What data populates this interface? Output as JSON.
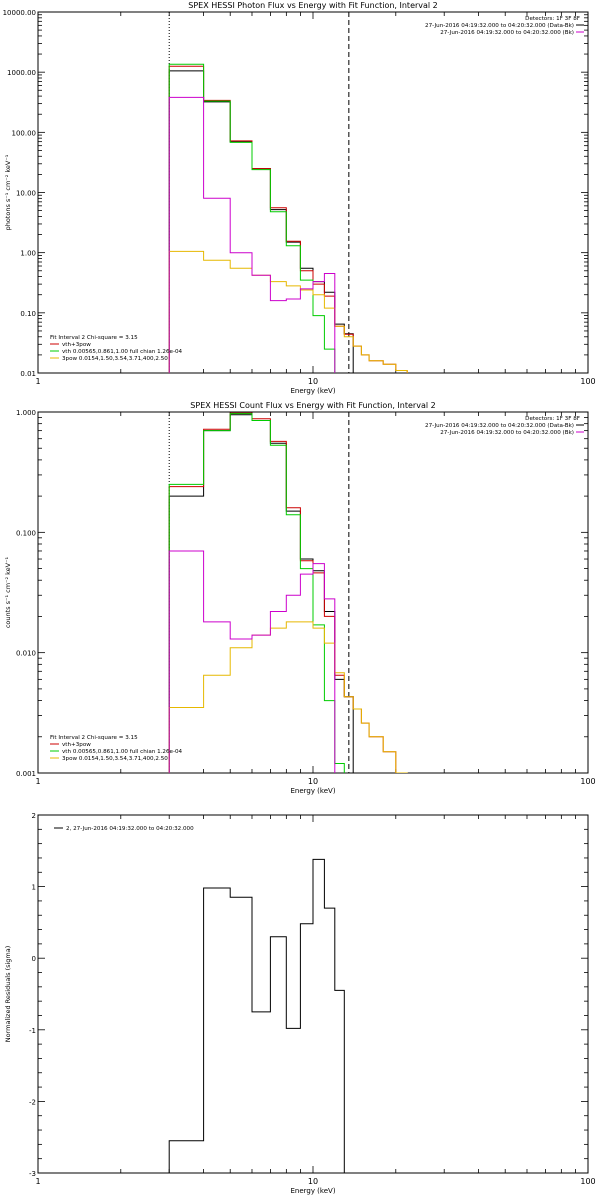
{
  "chart_data": [
    {
      "type": "line",
      "title": "SPEX HESSI Photon Flux vs Energy with Fit Function, Interval 2",
      "xlabel": "Energy (keV)",
      "ylabel": "photons s⁻¹ cm⁻² keV⁻¹",
      "x_scale": "log",
      "y_scale": "log",
      "xlim": [
        1,
        100
      ],
      "ylim": [
        0.01,
        10000
      ],
      "x_ticks": [
        "1",
        "10",
        "100"
      ],
      "y_ticks": [
        "0.01",
        "0.10",
        "1.00",
        "10.00",
        "100.00",
        "1000.00",
        "10000.00"
      ],
      "detectors": "Detectors: 1F 3F 8F",
      "legend_top": [
        {
          "text": "27-Jun-2016 04:19:32.000 to 04:20:32.000 (Data-Bk)",
          "color": "#000000"
        },
        {
          "text": "27-Jun-2016 04:19:32.000 to 04:20:32.000 (Bk)",
          "color": "#cc00cc"
        }
      ],
      "legend_bottom": [
        {
          "text": "Fit Interval 2   Chi-square = 3.15",
          "color": "#000000"
        },
        {
          "text": "vth+3pow",
          "color": "#cc0000"
        },
        {
          "text": "vth 0.00565,0.861,1.00  full chian 1.26e-04",
          "color": "#00cc00"
        },
        {
          "text": "3pow 0.0154,1.50,3.54,3.71,400,2.50",
          "color": "#e6b800"
        }
      ],
      "vlines": [
        {
          "x": 3.0,
          "style": "dotted",
          "color": "#000000"
        },
        {
          "x": 13.5,
          "style": "dashed",
          "color": "#000000"
        }
      ],
      "bin_edges": [
        3,
        4,
        5,
        6,
        7,
        8,
        9,
        10,
        11,
        12,
        13,
        14,
        15,
        16,
        18,
        20,
        22,
        25
      ],
      "series": [
        {
          "name": "Data-Bk",
          "color": "#000000",
          "values": [
            1050,
            320,
            70,
            25,
            5.2,
            1.5,
            0.55,
            0.33,
            0.22,
            0.065,
            0.045,
            null,
            null,
            null,
            null,
            null,
            null
          ]
        },
        {
          "name": "vth+3pow",
          "color": "#cc0000",
          "values": [
            1250,
            340,
            72,
            25,
            5.6,
            1.55,
            0.5,
            0.3,
            0.19,
            0.06,
            0.044,
            0.028,
            0.02,
            0.016,
            0.014,
            0.011,
            null
          ]
        },
        {
          "name": "vth",
          "color": "#00cc00",
          "values": [
            1350,
            330,
            68,
            24,
            4.8,
            1.3,
            0.35,
            0.09,
            0.025,
            null,
            null,
            null,
            null,
            null,
            null,
            null,
            null
          ]
        },
        {
          "name": "3pow",
          "color": "#e6b800",
          "values": [
            1.05,
            0.75,
            0.55,
            0.42,
            0.33,
            0.28,
            0.24,
            0.2,
            0.12,
            0.06,
            0.04,
            0.028,
            0.02,
            0.016,
            0.014,
            0.011,
            null
          ]
        },
        {
          "name": "Bk",
          "color": "#cc00cc",
          "values": [
            380,
            8,
            1.0,
            0.42,
            0.16,
            0.17,
            0.25,
            0.33,
            0.45,
            null,
            null,
            null,
            null,
            null,
            null,
            null,
            null
          ]
        }
      ]
    },
    {
      "type": "line",
      "title": "SPEX HESSI Count Flux vs Energy with Fit Function, Interval 2",
      "xlabel": "Energy (keV)",
      "ylabel": "counts s⁻¹ cm⁻² keV⁻¹",
      "x_scale": "log",
      "y_scale": "log",
      "xlim": [
        1,
        100
      ],
      "ylim": [
        0.001,
        1
      ],
      "x_ticks": [
        "1",
        "10",
        "100"
      ],
      "y_ticks": [
        "0.001",
        "0.010",
        "0.100",
        "1.000"
      ],
      "detectors": "Detectors: 1F 3F 8F",
      "legend_top": [
        {
          "text": "27-Jun-2016 04:19:32.000 to 04:20:32.000 (Data-Bk)",
          "color": "#000000"
        },
        {
          "text": "27-Jun-2016 04:19:32.000 to 04:20:32.000 (Bk)",
          "color": "#cc00cc"
        }
      ],
      "legend_bottom": [
        {
          "text": "Fit Interval 2   Chi-square = 3.15",
          "color": "#000000"
        },
        {
          "text": "vth+3pow",
          "color": "#cc0000"
        },
        {
          "text": "vth 0.00565,0.861,1.00  full chian 1.26e-04",
          "color": "#00cc00"
        },
        {
          "text": "3pow 0.0154,1.50,3.54,3.71,400,2.50",
          "color": "#e6b800"
        }
      ],
      "vlines": [
        {
          "x": 3.0,
          "style": "dotted",
          "color": "#000000"
        },
        {
          "x": 13.5,
          "style": "dashed",
          "color": "#000000"
        }
      ],
      "bin_edges": [
        3,
        4,
        5,
        6,
        7,
        8,
        9,
        10,
        11,
        12,
        13,
        14,
        15,
        16,
        18,
        20,
        22,
        25
      ],
      "series": [
        {
          "name": "Data-Bk",
          "color": "#000000",
          "values": [
            0.2,
            0.7,
            0.95,
            0.85,
            0.55,
            0.15,
            0.06,
            0.048,
            0.022,
            0.006,
            0.0043,
            null,
            null,
            null,
            null,
            null,
            null
          ]
        },
        {
          "name": "vth+3pow",
          "color": "#cc0000",
          "values": [
            0.24,
            0.72,
            0.98,
            0.88,
            0.57,
            0.16,
            0.058,
            0.046,
            0.02,
            0.0065,
            0.0043,
            0.0034,
            0.0026,
            0.002,
            0.0015,
            0.001,
            null
          ]
        },
        {
          "name": "vth",
          "color": "#00cc00",
          "values": [
            0.25,
            0.7,
            0.97,
            0.85,
            0.53,
            0.14,
            0.05,
            0.017,
            0.004,
            0.0012,
            null,
            null,
            null,
            null,
            null,
            null,
            null
          ]
        },
        {
          "name": "3pow",
          "color": "#e6b800",
          "values": [
            0.0035,
            0.0065,
            0.011,
            0.014,
            0.016,
            0.018,
            0.018,
            0.016,
            0.012,
            0.0068,
            0.0043,
            0.0034,
            0.0026,
            0.002,
            0.0015,
            0.001,
            null
          ]
        },
        {
          "name": "Bk",
          "color": "#cc00cc",
          "values": [
            0.07,
            0.018,
            0.013,
            0.014,
            0.022,
            0.03,
            0.045,
            0.055,
            0.028,
            null,
            null,
            null,
            null,
            null,
            null,
            null,
            null
          ]
        }
      ]
    },
    {
      "type": "line",
      "title": "",
      "xlabel": "Energy (keV)",
      "ylabel": "Normalized Residuals (sigma)",
      "x_scale": "log",
      "y_scale": "linear",
      "xlim": [
        1,
        100
      ],
      "ylim": [
        -3,
        2
      ],
      "x_ticks": [
        "1",
        "10",
        "100"
      ],
      "y_ticks": [
        "-3",
        "-2",
        "-1",
        "0",
        "1",
        "2"
      ],
      "legend_top": [
        {
          "text": "2, 27-Jun-2016 04:19:32.000 to 04:20:32.000",
          "color": "#000000"
        }
      ],
      "bin_edges": [
        3,
        4,
        5,
        6,
        7,
        8,
        9,
        10,
        11,
        12,
        13
      ],
      "series": [
        {
          "name": "",
          "color": "#000000",
          "values": [
            -2.55,
            0.98,
            0.85,
            -0.75,
            0.3,
            -0.98,
            0.48,
            1.38,
            0.7,
            -0.45
          ]
        }
      ]
    }
  ]
}
